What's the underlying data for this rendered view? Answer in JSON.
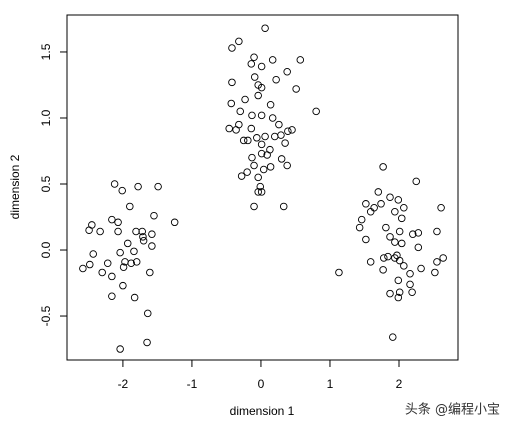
{
  "chart_data": {
    "type": "scatter",
    "x_label": "dimension 1",
    "y_label": "dimension 2",
    "watermark": "头条 @编程小宝",
    "xlim": [
      -2.81,
      2.855
    ],
    "ylim": [
      -0.833,
      1.78
    ],
    "xticks": [
      -2,
      -1,
      0,
      1,
      2
    ],
    "yticks": [
      -0.5,
      {
        "value": 0,
        "label": "0.0"
      },
      0.5,
      {
        "value": 1,
        "label": "1.0"
      },
      1.5
    ],
    "color": "#000000",
    "x": [
      0.06,
      -0.32,
      -0.42,
      -0.1,
      0.17,
      0.57,
      -0.14,
      0.01,
      0.38,
      -0.42,
      -0.09,
      0.22,
      -0.04,
      0.01,
      0.51,
      -0.04,
      -0.43,
      -0.23,
      0.14,
      -0.3,
      0.8,
      -0.13,
      0.01,
      0.17,
      0.26,
      -0.32,
      -0.46,
      -0.36,
      -0.14,
      0.39,
      0.45,
      0.29,
      -0.06,
      0.06,
      0.2,
      -0.19,
      -0.25,
      0.01,
      0.35,
      0.13,
      0.01,
      0.09,
      -0.13,
      0.3,
      -0.1,
      0.14,
      0.38,
      -0.2,
      0.04,
      -0.28,
      -0.04,
      -0.01,
      -0.04,
      0.01,
      -0.1,
      0.33,
      -2.12,
      -2.01,
      -1.78,
      -1.49,
      -1.9,
      -1.55,
      -2.16,
      -2.07,
      -1.25,
      -2.45,
      -2.49,
      -2.33,
      -2.07,
      -1.81,
      -1.72,
      -1.71,
      -1.58,
      -1.7,
      -1.93,
      -1.58,
      -2.04,
      -2.43,
      -1.84,
      -2.22,
      -1.97,
      -1.88,
      -1.8,
      -1.99,
      -2.48,
      -2.58,
      -2.3,
      -1.61,
      -2.16,
      -2.0,
      -2.16,
      -1.83,
      -1.64,
      -1.65,
      -2.04,
      1.77,
      2.25,
      1.7,
      1.87,
      1.52,
      1.74,
      1.99,
      1.64,
      1.59,
      2.07,
      2.61,
      1.94,
      1.46,
      2.04,
      1.43,
      1.81,
      2.01,
      2.2,
      2.28,
      2.55,
      1.52,
      1.87,
      1.94,
      2.04,
      2.28,
      1.84,
      1.97,
      1.78,
      2.01,
      1.94,
      2.64,
      2.55,
      1.59,
      2.07,
      1.77,
      2.32,
      2.52,
      1.13,
      2.16,
      1.99,
      2.16,
      1.87,
      1.99,
      2.19,
      2.01,
      1.91
    ],
    "y": [
      1.68,
      1.58,
      1.53,
      1.46,
      1.44,
      1.44,
      1.41,
      1.39,
      1.35,
      1.27,
      1.31,
      1.29,
      1.25,
      1.23,
      1.22,
      1.17,
      1.11,
      1.14,
      1.1,
      1.05,
      1.05,
      1.02,
      1.02,
      1.0,
      0.95,
      0.95,
      0.92,
      0.91,
      0.92,
      0.9,
      0.91,
      0.87,
      0.85,
      0.86,
      0.86,
      0.83,
      0.83,
      0.8,
      0.81,
      0.76,
      0.73,
      0.72,
      0.7,
      0.69,
      0.64,
      0.63,
      0.64,
      0.59,
      0.61,
      0.56,
      0.55,
      0.48,
      0.44,
      0.44,
      0.33,
      0.33,
      0.5,
      0.45,
      0.48,
      0.48,
      0.33,
      0.26,
      0.23,
      0.21,
      0.21,
      0.19,
      0.15,
      0.14,
      0.14,
      0.14,
      0.14,
      0.1,
      0.12,
      0.07,
      0.05,
      0.03,
      -0.02,
      -0.03,
      -0.01,
      -0.1,
      -0.09,
      -0.1,
      -0.09,
      -0.13,
      -0.11,
      -0.14,
      -0.17,
      -0.17,
      -0.2,
      -0.27,
      -0.35,
      -0.36,
      -0.48,
      -0.7,
      -0.75,
      0.63,
      0.52,
      0.44,
      0.4,
      0.35,
      0.35,
      0.38,
      0.32,
      0.29,
      0.32,
      0.32,
      0.29,
      0.23,
      0.24,
      0.17,
      0.17,
      0.14,
      0.12,
      0.13,
      0.14,
      0.08,
      0.1,
      0.06,
      0.05,
      0.02,
      -0.05,
      -0.04,
      -0.06,
      -0.08,
      -0.06,
      -0.06,
      -0.09,
      -0.09,
      -0.12,
      -0.15,
      -0.14,
      -0.17,
      -0.17,
      -0.18,
      -0.23,
      -0.26,
      -0.33,
      -0.36,
      -0.32,
      -0.32,
      -0.66
    ]
  }
}
